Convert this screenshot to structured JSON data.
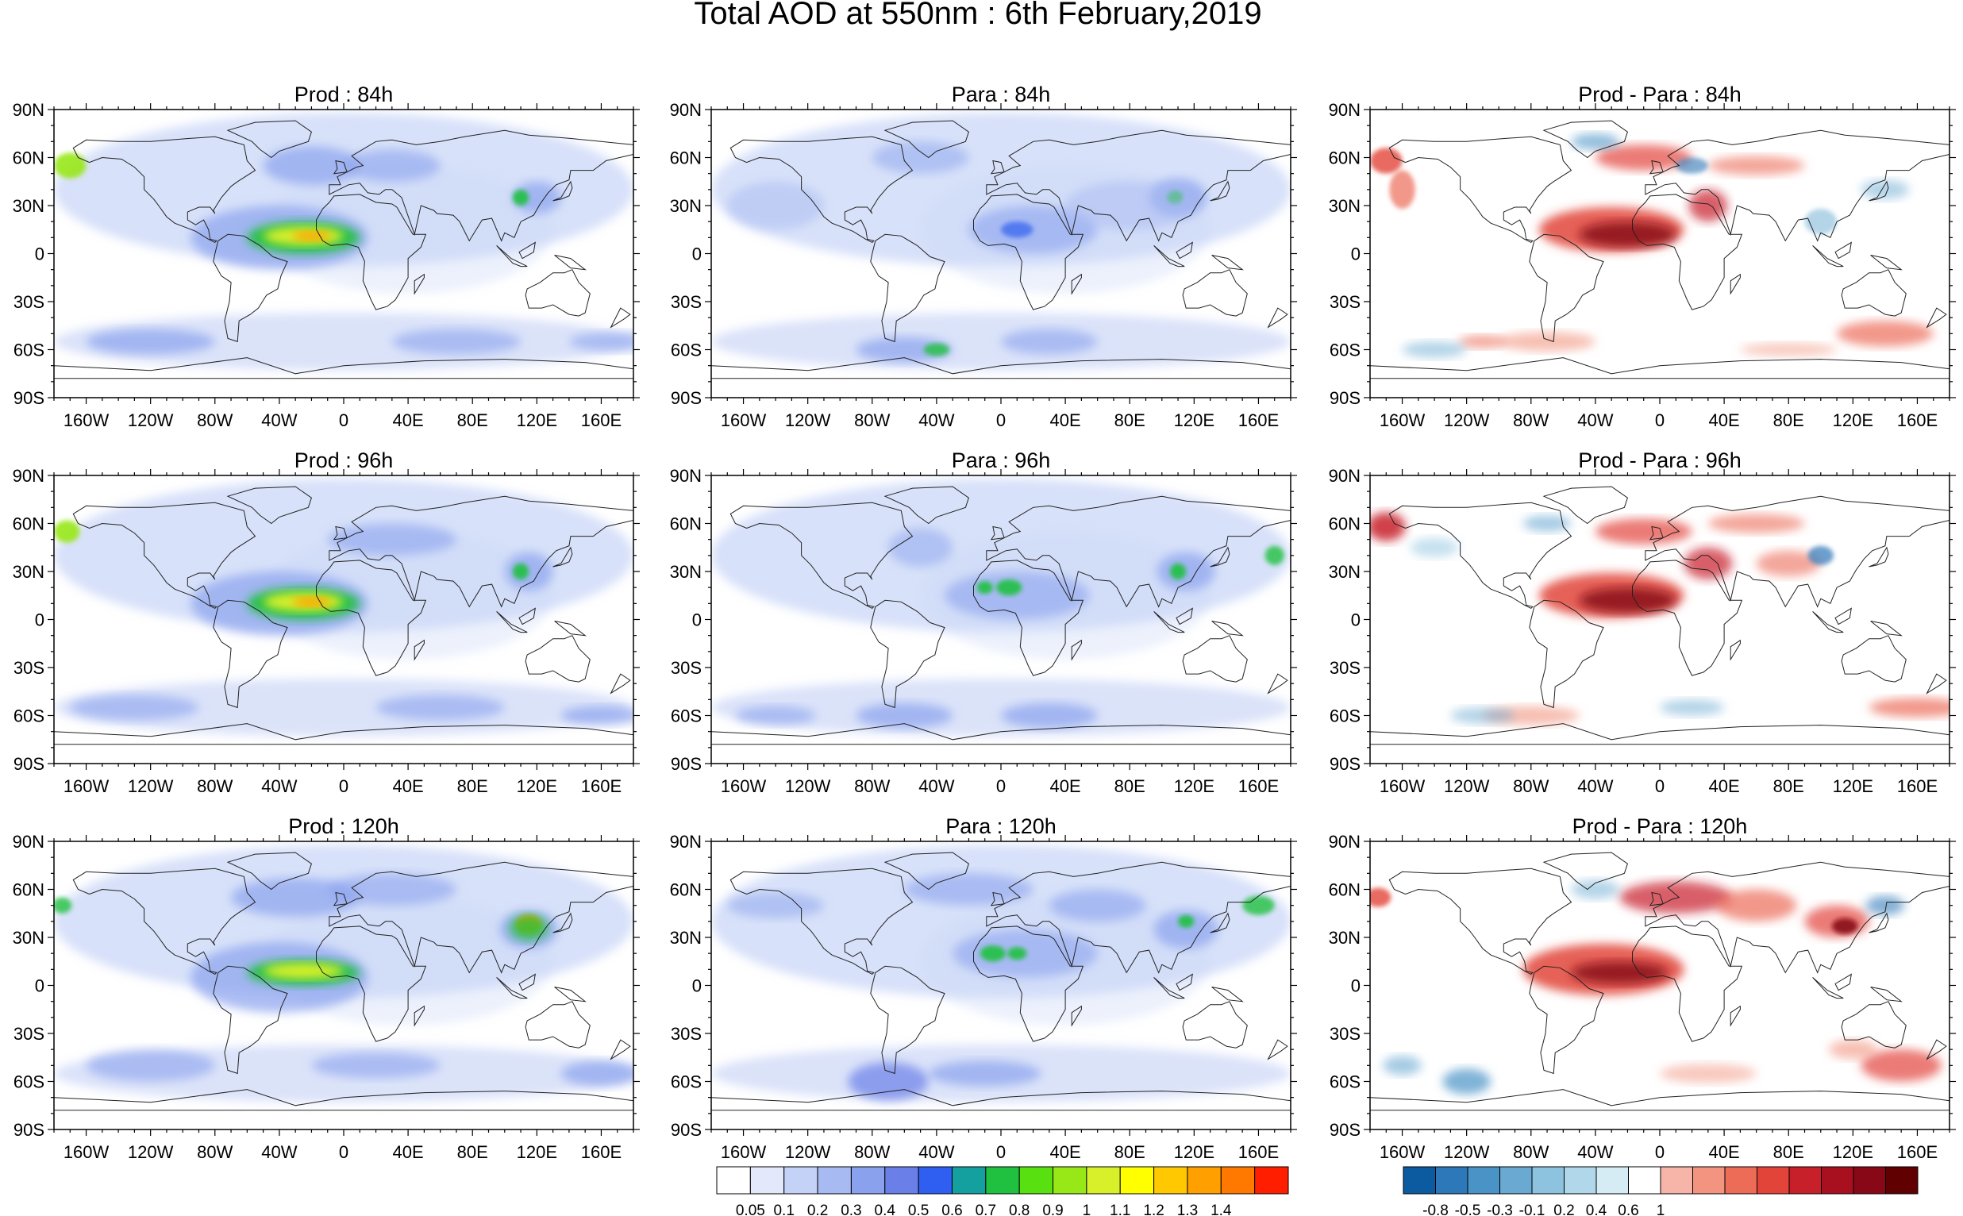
{
  "figure": {
    "title": "Total AOD at 550nm : 6th February,2019"
  },
  "axes": {
    "lon_labels": [
      "160W",
      "120W",
      "80W",
      "40W",
      "0",
      "40E",
      "80E",
      "120E",
      "160E"
    ],
    "lat_labels": [
      "90N",
      "60N",
      "30N",
      "0",
      "30S",
      "60S",
      "90S"
    ]
  },
  "panels": [
    {
      "title": "Prod : 84h",
      "kind": "aod"
    },
    {
      "title": "Para : 84h",
      "kind": "aod"
    },
    {
      "title": "Prod - Para : 84h",
      "kind": "diff"
    },
    {
      "title": "Prod : 96h",
      "kind": "aod"
    },
    {
      "title": "Para : 96h",
      "kind": "aod"
    },
    {
      "title": "Prod - Para : 96h",
      "kind": "diff"
    },
    {
      "title": "Prod : 120h",
      "kind": "aod"
    },
    {
      "title": "Para : 120h",
      "kind": "aod"
    },
    {
      "title": "Prod - Para : 120h",
      "kind": "diff"
    }
  ],
  "colorbars": {
    "aod": {
      "labels": [
        "0.05",
        "0.1",
        "0.2",
        "0.3",
        "0.4",
        "0.5",
        "0.6",
        "0.7",
        "0.8",
        "0.9",
        "1",
        "1.1",
        "1.2",
        "1.3",
        "1.4"
      ],
      "colors": [
        "#ffffff",
        "#e3e9fb",
        "#c5d2f7",
        "#a8baf2",
        "#8aa2ee",
        "#6b7fe8",
        "#2e5ff0",
        "#15a0a0",
        "#20c040",
        "#58e010",
        "#98e818",
        "#d7f02a",
        "#ffff00",
        "#ffc800",
        "#ffa000",
        "#ff7800",
        "#ff1e00"
      ]
    },
    "diff": {
      "labels": [
        "-0.8",
        "-0.5",
        "-0.3",
        "-0.1",
        "0.2",
        "0.4",
        "0.6",
        "1"
      ],
      "colors": [
        "#0c5aa0",
        "#2c78b8",
        "#4a93c6",
        "#6aa9d2",
        "#8dc3df",
        "#b0d8ea",
        "#d5ecf5",
        "#ffffff",
        "#f6b5a8",
        "#f29480",
        "#ec6c58",
        "#e2443a",
        "#c8202a",
        "#a81020",
        "#880818",
        "#600000"
      ]
    }
  }
}
